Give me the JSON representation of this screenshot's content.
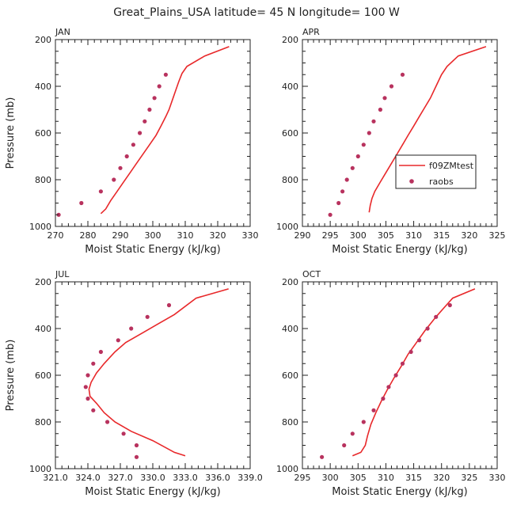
{
  "figure": {
    "title": "Great_Plains_USA  latitude= 45 N longitude= 100 W"
  },
  "colors": {
    "model_line": "#e8282a",
    "obs_marker": "#b8325e",
    "axis": "#222222"
  },
  "legend": {
    "model_label": "f09ZMtest",
    "obs_label": "raobs"
  },
  "chart_data": [
    {
      "type": "line",
      "panel": "JAN",
      "xlabel": "Moist Static Energy (kJ/kg)",
      "ylabel": "Pressure (mb)",
      "xlim": [
        270,
        330
      ],
      "ylim": [
        1000,
        200
      ],
      "xticks": [
        270,
        280,
        290,
        300,
        310,
        320,
        330
      ],
      "xtick_labels": [
        "270",
        "280",
        "290",
        "300",
        "310",
        "320",
        "330"
      ],
      "yticks": [
        200,
        400,
        600,
        800,
        1000
      ],
      "ytick_labels": [
        "200",
        "400",
        "600",
        "800",
        "1000"
      ],
      "series": [
        {
          "name": "f09ZMtest",
          "kind": "line",
          "points": [
            [
              284,
              945
            ],
            [
              285.5,
              925
            ],
            [
              287,
              890
            ],
            [
              289,
              850
            ],
            [
              291,
              810
            ],
            [
              293,
              770
            ],
            [
              295,
              730
            ],
            [
              297,
              690
            ],
            [
              299,
              650
            ],
            [
              301,
              610
            ],
            [
              302.5,
              570
            ],
            [
              304,
              530
            ],
            [
              305,
              500
            ],
            [
              306,
              460
            ],
            [
              307,
              420
            ],
            [
              308,
              380
            ],
            [
              309,
              345
            ],
            [
              310.5,
              315
            ],
            [
              316,
              270
            ],
            [
              323.5,
              230
            ]
          ]
        },
        {
          "name": "raobs",
          "kind": "scatter",
          "points": [
            [
              271,
              950
            ],
            [
              278,
              900
            ],
            [
              284,
              850
            ],
            [
              288,
              800
            ],
            [
              290,
              750
            ],
            [
              292,
              700
            ],
            [
              294,
              650
            ],
            [
              296,
              600
            ],
            [
              297.5,
              550
            ],
            [
              299,
              500
            ],
            [
              300.5,
              450
            ],
            [
              302,
              400
            ],
            [
              304,
              350
            ]
          ]
        }
      ]
    },
    {
      "type": "line",
      "panel": "APR",
      "xlabel": "Moist Static Energy (kJ/kg)",
      "ylabel": "Pressure (mb)",
      "xlim": [
        290,
        325
      ],
      "ylim": [
        1000,
        200
      ],
      "xticks": [
        290,
        295,
        300,
        305,
        310,
        315,
        320,
        325
      ],
      "xtick_labels": [
        "290",
        "295",
        "300",
        "305",
        "310",
        "315",
        "320",
        "325"
      ],
      "yticks": [
        200,
        400,
        600,
        800,
        1000
      ],
      "ytick_labels": [
        "200",
        "400",
        "600",
        "800",
        "1000"
      ],
      "series": [
        {
          "name": "f09ZMtest",
          "kind": "line",
          "points": [
            [
              302,
              940
            ],
            [
              302.2,
              910
            ],
            [
              302.5,
              880
            ],
            [
              303,
              850
            ],
            [
              304,
              810
            ],
            [
              305,
              770
            ],
            [
              306,
              730
            ],
            [
              307,
              690
            ],
            [
              308,
              650
            ],
            [
              309,
              610
            ],
            [
              310,
              570
            ],
            [
              311,
              530
            ],
            [
              312,
              490
            ],
            [
              313,
              450
            ],
            [
              314,
              400
            ],
            [
              315,
              350
            ],
            [
              316,
              315
            ],
            [
              318,
              270
            ],
            [
              323,
              230
            ]
          ]
        },
        {
          "name": "raobs",
          "kind": "scatter",
          "points": [
            [
              295,
              950
            ],
            [
              296.5,
              900
            ],
            [
              297.2,
              850
            ],
            [
              298,
              800
            ],
            [
              299,
              750
            ],
            [
              300,
              700
            ],
            [
              301,
              650
            ],
            [
              302,
              600
            ],
            [
              302.8,
              550
            ],
            [
              304,
              500
            ],
            [
              304.8,
              450
            ],
            [
              306,
              400
            ],
            [
              308,
              350
            ]
          ]
        }
      ]
    },
    {
      "type": "line",
      "panel": "JUL",
      "xlabel": "Moist Static Energy (kJ/kg)",
      "ylabel": "Pressure (mb)",
      "xlim": [
        321.0,
        339.0
      ],
      "ylim": [
        1000,
        200
      ],
      "xticks": [
        321,
        324,
        327,
        330,
        333,
        336,
        339
      ],
      "xtick_labels": [
        "321.0",
        "324.0",
        "327.0",
        "330.0",
        "333.0",
        "336.0",
        "339.0"
      ],
      "yticks": [
        200,
        400,
        600,
        800,
        1000
      ],
      "ytick_labels": [
        "200",
        "400",
        "600",
        "800",
        "1000"
      ],
      "series": [
        {
          "name": "f09ZMtest",
          "kind": "line",
          "points": [
            [
              333,
              945
            ],
            [
              332,
              930
            ],
            [
              330,
              880
            ],
            [
              328,
              840
            ],
            [
              326.5,
              800
            ],
            [
              325.5,
              760
            ],
            [
              324.8,
              720
            ],
            [
              324.2,
              690
            ],
            [
              324.1,
              660
            ],
            [
              324.3,
              630
            ],
            [
              324.8,
              590
            ],
            [
              325.5,
              550
            ],
            [
              326.5,
              500
            ],
            [
              327.5,
              460
            ],
            [
              329,
              420
            ],
            [
              330.5,
              380
            ],
            [
              332,
              340
            ],
            [
              334,
              270
            ],
            [
              337,
              230
            ]
          ]
        },
        {
          "name": "raobs",
          "kind": "scatter",
          "points": [
            [
              328.5,
              950
            ],
            [
              328.5,
              900
            ],
            [
              327.3,
              850
            ],
            [
              325.8,
              800
            ],
            [
              324.5,
              750
            ],
            [
              324,
              700
            ],
            [
              323.8,
              650
            ],
            [
              324,
              600
            ],
            [
              324.5,
              550
            ],
            [
              325.2,
              500
            ],
            [
              326.8,
              450
            ],
            [
              328,
              400
            ],
            [
              329.5,
              350
            ],
            [
              331.5,
              300
            ]
          ]
        }
      ]
    },
    {
      "type": "line",
      "panel": "OCT",
      "xlabel": "Moist Static Energy (kJ/kg)",
      "ylabel": "Pressure (mb)",
      "xlim": [
        295,
        330
      ],
      "ylim": [
        1000,
        200
      ],
      "xticks": [
        295,
        300,
        305,
        310,
        315,
        320,
        325,
        330
      ],
      "xtick_labels": [
        "295",
        "300",
        "305",
        "310",
        "315",
        "320",
        "325",
        "330"
      ],
      "yticks": [
        200,
        400,
        600,
        800,
        1000
      ],
      "ytick_labels": [
        "200",
        "400",
        "600",
        "800",
        "1000"
      ],
      "series": [
        {
          "name": "f09ZMtest",
          "kind": "line",
          "points": [
            [
              304,
              945
            ],
            [
              305.5,
              930
            ],
            [
              306.3,
              900
            ],
            [
              306.7,
              860
            ],
            [
              307.3,
              810
            ],
            [
              308.2,
              760
            ],
            [
              309.2,
              710
            ],
            [
              310.3,
              660
            ],
            [
              311.5,
              610
            ],
            [
              312.8,
              560
            ],
            [
              314,
              510
            ],
            [
              315.5,
              460
            ],
            [
              317,
              410
            ],
            [
              319,
              350
            ],
            [
              320.5,
              310
            ],
            [
              322,
              270
            ],
            [
              326,
              230
            ]
          ]
        },
        {
          "name": "raobs",
          "kind": "scatter",
          "points": [
            [
              298.5,
              950
            ],
            [
              302.5,
              900
            ],
            [
              304,
              850
            ],
            [
              306,
              800
            ],
            [
              307.8,
              750
            ],
            [
              309.5,
              700
            ],
            [
              310.5,
              650
            ],
            [
              311.8,
              600
            ],
            [
              313,
              550
            ],
            [
              314.5,
              500
            ],
            [
              316,
              450
            ],
            [
              317.5,
              400
            ],
            [
              319,
              350
            ],
            [
              321.5,
              300
            ]
          ]
        }
      ]
    }
  ]
}
